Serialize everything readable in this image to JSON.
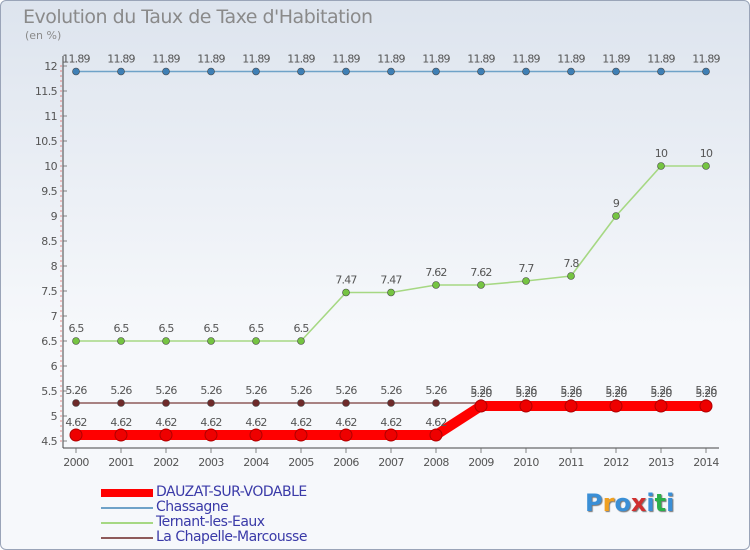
{
  "title": "Evolution du Taux de Taxe d'Habitation",
  "unit_label": "(en %)",
  "logo": {
    "chars": [
      "P",
      "r",
      "o",
      "x",
      "i",
      "t",
      "i"
    ],
    "colors": [
      "#3a8fd6",
      "#f0a020",
      "#3a8fd6",
      "#d03030",
      "#3a8fd6",
      "#2bb04a",
      "#3a8fd6"
    ]
  },
  "chart_data": {
    "type": "line",
    "title": "Evolution du Taux de Taxe d'Habitation",
    "ylabel": "(en %)",
    "xlabel": "",
    "ylim": [
      4.5,
      12
    ],
    "yticks": [
      4.5,
      5,
      5.5,
      6,
      6.5,
      7,
      7.5,
      8,
      8.5,
      9,
      9.5,
      10,
      10.5,
      11,
      11.5,
      12
    ],
    "grid": false,
    "legend_position": "bottom-left",
    "categories": [
      "2000",
      "2001",
      "2002",
      "2003",
      "2004",
      "2005",
      "2006",
      "2007",
      "2008",
      "2009",
      "2010",
      "2011",
      "2012",
      "2013",
      "2014"
    ],
    "series": [
      {
        "name": "Chassagne",
        "color": "#6fa2c8",
        "marker": "#3f7fb5",
        "values": [
          11.89,
          11.89,
          11.89,
          11.89,
          11.89,
          11.89,
          11.89,
          11.89,
          11.89,
          11.89,
          11.89,
          11.89,
          11.89,
          11.89,
          11.89
        ],
        "labels": [
          "11.89",
          "11.89",
          "11.89",
          "11.89",
          "11.89",
          "11.89",
          "11.89",
          "11.89",
          "11.89",
          "11.89",
          "11.89",
          "11.89",
          "11.89",
          "11.89",
          "11.89"
        ]
      },
      {
        "name": "Ternant-les-Eaux",
        "color": "#a6d883",
        "marker": "#75c442",
        "values": [
          6.5,
          6.5,
          6.5,
          6.5,
          6.5,
          6.5,
          7.47,
          7.47,
          7.62,
          7.62,
          7.7,
          7.8,
          9,
          10,
          10
        ],
        "labels": [
          "6.5",
          "6.5",
          "6.5",
          "6.5",
          "6.5",
          "6.5",
          "7.47",
          "7.47",
          "7.62",
          "7.62",
          "7.7",
          "7.8",
          "9",
          "10",
          "10"
        ]
      },
      {
        "name": "La Chapelle-Marcousse",
        "color": "#8e5a5a",
        "marker": "#6e2a2a",
        "values": [
          5.26,
          5.26,
          5.26,
          5.26,
          5.26,
          5.26,
          5.26,
          5.26,
          5.26,
          5.26,
          5.26,
          5.26,
          5.26,
          5.26,
          5.26
        ],
        "labels": [
          "5.26",
          "5.26",
          "5.26",
          "5.26",
          "5.26",
          "5.26",
          "5.26",
          "5.26",
          "5.26",
          "5.26",
          "5.26",
          "5.26",
          "5.26",
          "5.26",
          "5.26"
        ]
      },
      {
        "name": "DAUZAT-SUR-VODABLE",
        "color": "#ff0000",
        "marker": "#ee0000",
        "thick": true,
        "values": [
          4.62,
          4.62,
          4.62,
          4.62,
          4.62,
          4.62,
          4.62,
          4.62,
          4.62,
          5.2,
          5.2,
          5.2,
          5.2,
          5.2,
          5.2
        ],
        "labels": [
          "4.62",
          "4.62",
          "4.62",
          "4.62",
          "4.62",
          "4.62",
          "4.62",
          "4.62",
          "4.62",
          "5.20",
          "5.20",
          "5.20",
          "5.20",
          "5.20",
          "5.20"
        ]
      }
    ],
    "legend": [
      "DAUZAT-SUR-VODABLE",
      "Chassagne",
      "Ternant-les-Eaux",
      "La Chapelle-Marcousse"
    ]
  }
}
